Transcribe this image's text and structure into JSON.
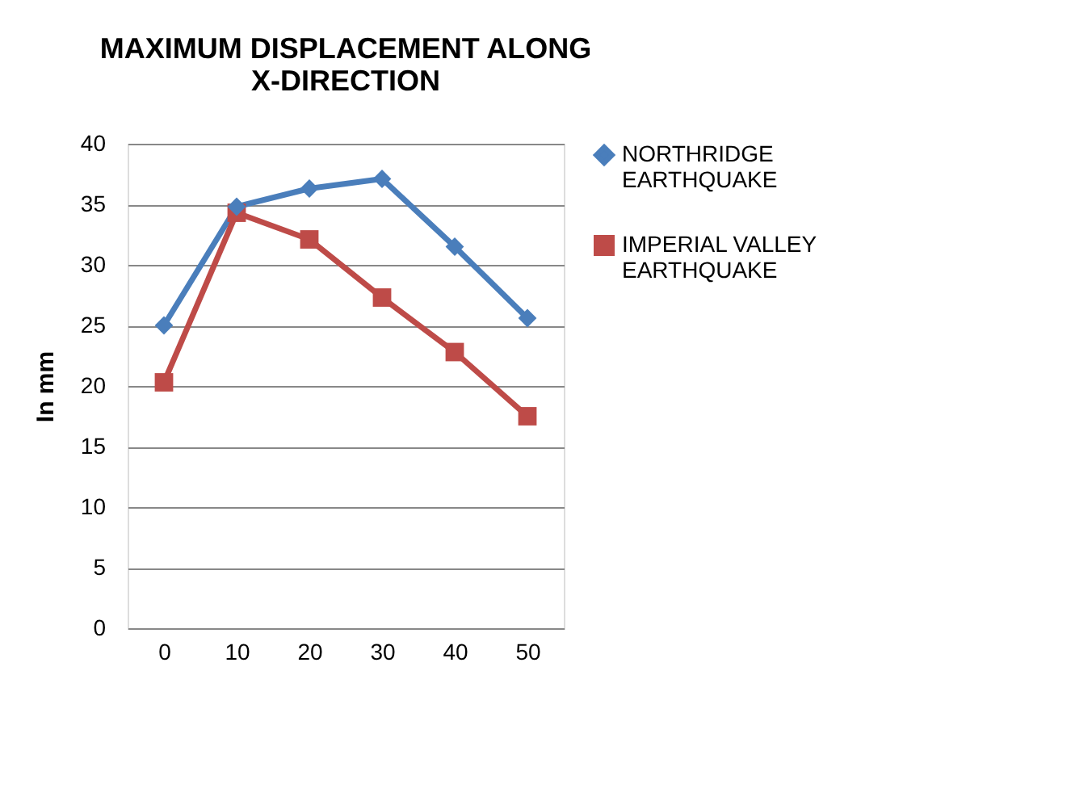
{
  "chart_data": {
    "type": "line",
    "title": "MAXIMUM DISPLACEMENT ALONG X-DIRECTION",
    "ylabel": "In mm",
    "categories": [
      "0",
      "10",
      "20",
      "30",
      "40",
      "50"
    ],
    "series": [
      {
        "name": "NORTHRIDGE EARTHQUAKE",
        "color": "#4a7ebb",
        "marker": "diamond",
        "values": [
          25.0,
          34.8,
          36.3,
          37.1,
          31.5,
          25.6
        ]
      },
      {
        "name": "IMPERIAL VALLEY EARTHQUAKE",
        "color": "#be4b48",
        "marker": "square",
        "values": [
          20.3,
          34.3,
          32.1,
          27.3,
          22.8,
          17.5
        ]
      }
    ],
    "ylim": [
      0,
      40
    ],
    "yticks": [
      0,
      5,
      10,
      15,
      20,
      25,
      30,
      35,
      40
    ],
    "grid": "y",
    "legend": "right"
  }
}
